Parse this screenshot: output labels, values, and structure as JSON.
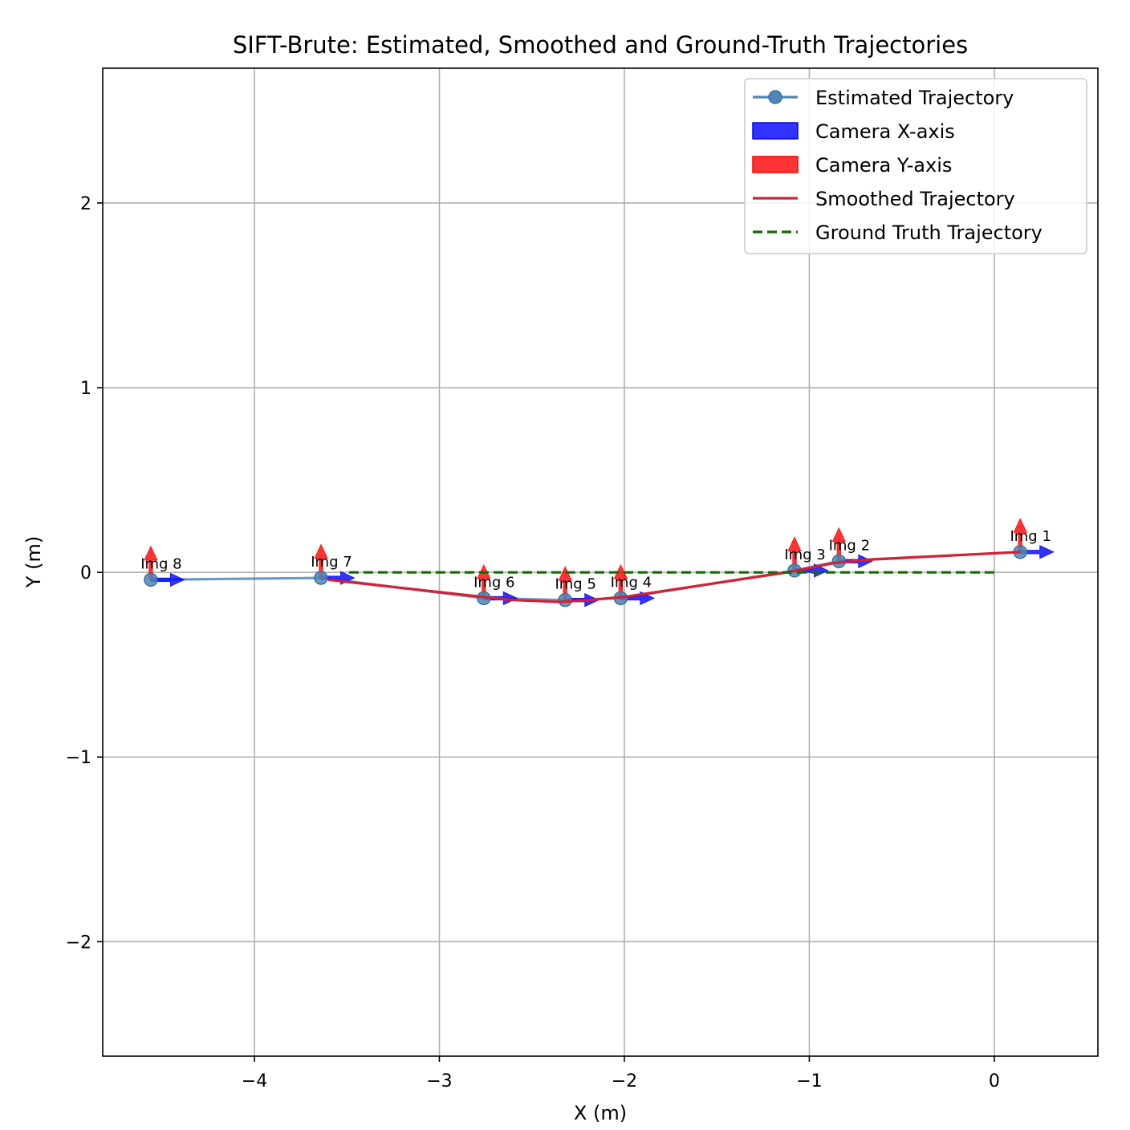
{
  "chart_data": {
    "type": "line",
    "title": "SIFT-Brute: Estimated, Smoothed and Ground-Truth Trajectories",
    "xlabel": "X (m)",
    "ylabel": "Y (m)",
    "xlim": [
      -4.82,
      0.56
    ],
    "ylim": [
      -2.62,
      2.73
    ],
    "xticks": [
      -4,
      -3,
      -2,
      -1,
      0
    ],
    "yticks": [
      -2,
      -1,
      0,
      1,
      2
    ],
    "xtick_labels": [
      "−4",
      "−3",
      "−2",
      "−1",
      "0"
    ],
    "ytick_labels": [
      "−2",
      "−1",
      "0",
      "1",
      "2"
    ],
    "grid": true,
    "legend_position": "top-right",
    "legend": [
      {
        "label": "Estimated Trajectory",
        "kind": "line-marker",
        "color": "#4f86b9"
      },
      {
        "label": "Camera X-axis",
        "kind": "patch",
        "color": "#0000ff"
      },
      {
        "label": "Camera Y-axis",
        "kind": "patch",
        "color": "#ff0000"
      },
      {
        "label": "Smoothed Trajectory",
        "kind": "line",
        "color": "#d62034"
      },
      {
        "label": "Ground Truth Trajectory",
        "kind": "dashed-line",
        "color": "#146b06"
      }
    ],
    "series": [
      {
        "name": "Estimated Trajectory",
        "color": "#4f86b9",
        "points": [
          {
            "x": 0.14,
            "y": 0.11,
            "label": "Img 1"
          },
          {
            "x": -0.84,
            "y": 0.06,
            "label": "Img 2"
          },
          {
            "x": -1.08,
            "y": 0.01,
            "label": "Img 3"
          },
          {
            "x": -2.02,
            "y": -0.14,
            "label": "Img 4"
          },
          {
            "x": -2.32,
            "y": -0.15,
            "label": "Img 5"
          },
          {
            "x": -2.76,
            "y": -0.14,
            "label": "Img 6"
          },
          {
            "x": -3.64,
            "y": -0.03,
            "label": "Img 7"
          },
          {
            "x": -4.56,
            "y": -0.04,
            "label": "Img 8"
          }
        ]
      },
      {
        "name": "Smoothed Trajectory",
        "color": "#d62034",
        "points": [
          {
            "x": 0.14,
            "y": 0.11
          },
          {
            "x": -0.66,
            "y": 0.07
          },
          {
            "x": -0.87,
            "y": 0.05
          },
          {
            "x": -1.12,
            "y": 0.0
          },
          {
            "x": -1.98,
            "y": -0.13
          },
          {
            "x": -2.19,
            "y": -0.15
          },
          {
            "x": -2.35,
            "y": -0.16
          },
          {
            "x": -2.6,
            "y": -0.15
          },
          {
            "x": -2.79,
            "y": -0.13
          },
          {
            "x": -3.6,
            "y": -0.04
          }
        ]
      },
      {
        "name": "Ground Truth Trajectory",
        "color": "#146b06",
        "points": [
          {
            "x": 0.0,
            "y": 0.0
          },
          {
            "x": -3.5,
            "y": 0.0
          }
        ]
      }
    ],
    "camera_axes": {
      "x_axis_length": 0.18,
      "y_axis_length": 0.18
    }
  }
}
